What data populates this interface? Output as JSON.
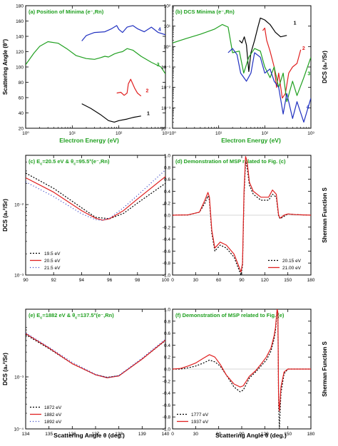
{
  "figure": {
    "xlabel_top": "Electron Energy (eV)",
    "xlabel_bottom": "Scattering Angle θ (deg.)"
  },
  "chart_data": [
    {
      "id": "a",
      "type": "line",
      "title": "(a) Position of Minima (e⁻,Rn)",
      "xlabel": "Electron Energy (eV)",
      "ylabel": "Scattering Angle (θ°)",
      "xscale": "log",
      "xlim": [
        1,
        1000
      ],
      "ylim": [
        20,
        180
      ],
      "xticks": [
        1,
        10,
        100,
        1000
      ],
      "xticklabels": [
        "10⁰",
        "10¹",
        "10²",
        "10³"
      ],
      "yticks": [
        20,
        40,
        60,
        80,
        100,
        120,
        140,
        160,
        180
      ],
      "yticklabels": [
        "20",
        "40",
        "60",
        "80",
        "100",
        "120",
        "140",
        "160",
        "180"
      ],
      "series": [
        {
          "name": "1",
          "color": "#000000",
          "x": [
            16,
            25,
            40,
            60,
            80,
            100,
            150,
            200,
            300
          ],
          "y": [
            52,
            46,
            38,
            30,
            28,
            30,
            32,
            34,
            36
          ]
        },
        {
          "name": "2",
          "color": "#e02020",
          "x": [
            90,
            110,
            130,
            150,
            160,
            180,
            220,
            250,
            300
          ],
          "y": [
            66,
            67,
            63,
            66,
            78,
            84,
            72,
            66,
            62
          ]
        },
        {
          "name": "3",
          "color": "#20a020",
          "x": [
            1,
            1.5,
            2,
            3,
            5,
            8,
            12,
            20,
            30,
            40,
            50,
            60,
            80,
            100,
            120,
            150,
            200,
            300,
            500,
            800,
            1000
          ],
          "y": [
            103,
            118,
            127,
            133,
            131,
            123,
            115,
            111,
            110,
            112,
            114,
            113,
            117,
            119,
            120,
            124,
            122,
            114,
            106,
            100,
            91
          ]
        },
        {
          "name": "4",
          "color": "#2030c0",
          "x": [
            16,
            20,
            30,
            50,
            70,
            90,
            100,
            120,
            150,
            200,
            250,
            350,
            500,
            700,
            1000
          ],
          "y": [
            134,
            141,
            145,
            146,
            150,
            154,
            149,
            145,
            152,
            154,
            150,
            146,
            152,
            145,
            142
          ]
        }
      ],
      "curve_labels": [
        {
          "text": "1",
          "x": 400,
          "y": 37,
          "color": "#000000"
        },
        {
          "text": "2",
          "x": 380,
          "y": 67,
          "color": "#e02020"
        },
        {
          "text": "3",
          "x": 650,
          "y": 101,
          "color": "#20a020"
        },
        {
          "text": "4",
          "x": 700,
          "y": 147,
          "color": "#2030c0"
        }
      ]
    },
    {
      "id": "b",
      "type": "line",
      "title": "(b) DCS  Minima (e⁻,Rn)",
      "xlabel": "Electron Energy (eV)",
      "ylabel": "DCS (a₀²/Sr)",
      "ylabel_side": "right",
      "xscale": "log",
      "yscale": "log",
      "xlim": [
        1,
        1000
      ],
      "ylim": [
        0.0001,
        100
      ],
      "xticks": [
        1,
        10,
        100,
        1000
      ],
      "xticklabels": [
        "10⁰",
        "10¹",
        "10²",
        "10³"
      ],
      "yticks": [
        0.0001,
        0.001,
        0.01,
        0.1,
        1,
        10,
        100
      ],
      "yticklabels": [
        "10⁻⁴",
        "10⁻³",
        "10⁻²",
        "10⁻¹",
        "10⁰",
        "10¹",
        "10²"
      ],
      "series": [
        {
          "name": "1",
          "color": "#000000",
          "x": [
            28,
            32,
            36,
            40,
            45,
            50,
            60,
            70,
            80,
            100,
            130,
            170,
            220,
            300
          ],
          "y": [
            2,
            1.5,
            3,
            1.2,
            0.06,
            0.5,
            2,
            8,
            25,
            20,
            12,
            5,
            3,
            3.5
          ]
        },
        {
          "name": "2",
          "color": "#e02020",
          "x": [
            90,
            100,
            110,
            130,
            160,
            180,
            200,
            240,
            280,
            330,
            400,
            500,
            600
          ],
          "y": [
            6,
            8,
            2,
            0.6,
            0.1,
            0.01,
            0.05,
            0.003,
            0.005,
            0.05,
            0.1,
            0.15,
            0.7
          ]
        },
        {
          "name": "3",
          "color": "#20a020",
          "x": [
            1,
            2,
            4,
            8,
            12,
            16,
            20,
            28,
            35,
            45,
            60,
            80,
            100,
            130,
            160,
            200,
            250,
            300,
            400,
            500,
            700,
            1000
          ],
          "y": [
            1.5,
            2.5,
            4,
            7,
            12,
            9,
            0.5,
            0.6,
            0.05,
            0.3,
            0.8,
            0.6,
            0.1,
            0.03,
            0.1,
            0.01,
            0.05,
            0.002,
            0.02,
            0.004,
            0.03,
            0.3
          ]
        },
        {
          "name": "4",
          "color": "#2030c0",
          "x": [
            16,
            20,
            25,
            30,
            40,
            50,
            60,
            80,
            100,
            130,
            160,
            200,
            250,
            300,
            400,
            500,
            700,
            1000
          ],
          "y": [
            0.5,
            0.8,
            0.4,
            0.05,
            0.02,
            0.05,
            0.5,
            0.3,
            0.05,
            0.08,
            0.02,
            0.01,
            0.0005,
            0.005,
            0.0003,
            0.002,
            0.0002,
            0.003
          ]
        }
      ],
      "curve_labels": [
        {
          "text": "1",
          "x": 420,
          "y": 12,
          "color": "#000000"
        },
        {
          "text": "2",
          "x": 650,
          "y": 0.7,
          "color": "#e02020"
        },
        {
          "text": "3",
          "x": 850,
          "y": 0.04,
          "color": "#20a020"
        },
        {
          "text": "4",
          "x": 800,
          "y": 0.0009,
          "color": "#2030c0"
        }
      ]
    },
    {
      "id": "c",
      "type": "line",
      "title": "(c) E",
      "title_sub_1": "c",
      "title_mid": "=20.5 eV & θ",
      "title_sub_2": "c",
      "title_end": "=95.5°(e⁻,Rn)",
      "xlabel": "",
      "ylabel": "DCS (a₀²/Sr)",
      "yscale": "log",
      "xlim": [
        90,
        100
      ],
      "ylim": [
        0.001,
        0.05
      ],
      "xticks": [
        90,
        92,
        94,
        96,
        98,
        100
      ],
      "xticklabels": [
        "90",
        "92",
        "94",
        "96",
        "98",
        "100"
      ],
      "yticks": [
        0.001,
        0.01
      ],
      "yticklabels": [
        "10⁻³",
        "10⁻²"
      ],
      "legend": "bottom-left",
      "series": [
        {
          "name": "19.5 eV",
          "color": "#000000",
          "dash": "2,2",
          "x": [
            90,
            92,
            94,
            95,
            96,
            97,
            98,
            100
          ],
          "y": [
            0.028,
            0.017,
            0.009,
            0.0066,
            0.0063,
            0.0075,
            0.0105,
            0.02
          ]
        },
        {
          "name": "20.5 eV",
          "color": "#e02020",
          "dash": "",
          "x": [
            90,
            92,
            94,
            95,
            95.5,
            96,
            97,
            98,
            100
          ],
          "y": [
            0.024,
            0.015,
            0.0082,
            0.0064,
            0.006,
            0.0063,
            0.0082,
            0.012,
            0.025
          ]
        },
        {
          "name": "21.5 eV",
          "color": "#2030c0",
          "dash": "1,3",
          "x": [
            90,
            92,
            94,
            95,
            95.5,
            96,
            97,
            98,
            100
          ],
          "y": [
            0.021,
            0.013,
            0.0074,
            0.0061,
            0.006,
            0.0064,
            0.009,
            0.0135,
            0.031
          ]
        }
      ]
    },
    {
      "id": "d",
      "type": "line",
      "title": "(d) Demonstration of MSP related to Fig. (c)",
      "xlabel": "",
      "ylabel": "Sherman Function S",
      "ylabel_side": "right",
      "xlim": [
        0,
        180
      ],
      "ylim": [
        -1,
        1
      ],
      "xticks": [
        0,
        30,
        60,
        90,
        120,
        150,
        180
      ],
      "xticklabels": [
        "0",
        "30",
        "60",
        "90",
        "120",
        "150",
        "180"
      ],
      "yticks": [
        -1,
        -0.8,
        -0.6,
        -0.4,
        -0.2,
        0,
        0.2,
        0.4,
        0.6,
        0.8,
        1
      ],
      "yticklabels": [
        "-1.0",
        "-0.8",
        "-0.6",
        "-0.4",
        "-0.2",
        "0.0",
        "0.2",
        "0.4",
        "0.6",
        "0.8",
        "1.0"
      ],
      "legend": "bottom-right",
      "series": [
        {
          "name": "20.15 eV",
          "color": "#000000",
          "dash": "2,2",
          "x": [
            0,
            20,
            35,
            42,
            46,
            48,
            51,
            55,
            62,
            70,
            80,
            86,
            89,
            91,
            93,
            95,
            97,
            100,
            105,
            115,
            125,
            130,
            135,
            138,
            140,
            145,
            150,
            160,
            170,
            180
          ],
          "y": [
            0,
            0.005,
            0.05,
            0.2,
            0.32,
            0.25,
            -0.3,
            -0.6,
            -0.5,
            -0.55,
            -0.7,
            -0.9,
            -1,
            -0.85,
            0.3,
            0.9,
            0.8,
            0.5,
            0.35,
            0.25,
            0.25,
            0.35,
            0.3,
            -0.02,
            -0.06,
            -0.02,
            0.02,
            0.01,
            0.005,
            0
          ]
        },
        {
          "name": "21.00 eV",
          "color": "#e02020",
          "dash": "",
          "x": [
            0,
            20,
            35,
            42,
            46,
            48,
            51,
            55,
            62,
            70,
            80,
            86,
            89,
            91,
            93,
            95,
            97,
            100,
            105,
            115,
            125,
            130,
            135,
            138,
            140,
            145,
            150,
            160,
            170,
            180
          ],
          "y": [
            0,
            0.005,
            0.05,
            0.25,
            0.38,
            0.3,
            -0.25,
            -0.55,
            -0.45,
            -0.5,
            -0.65,
            -0.85,
            -0.95,
            -0.8,
            0.4,
            0.98,
            0.9,
            0.55,
            0.4,
            0.3,
            0.3,
            0.42,
            0.35,
            0,
            -0.05,
            0,
            0.02,
            0.01,
            0.005,
            0
          ]
        }
      ]
    },
    {
      "id": "e",
      "type": "line",
      "title": "(e) E",
      "title_sub_1": "c",
      "title_mid": "=1882 eV & θ",
      "title_sub_2": "c",
      "title_end": "=137.5°(e⁻,Rn)",
      "xlabel": "Scattering Angle θ (deg.)",
      "ylabel": "DCS (a₀²/Sr)",
      "yscale": "log",
      "xlim": [
        134,
        140
      ],
      "ylim": [
        0.0001,
        0.02
      ],
      "xticks": [
        134,
        135,
        136,
        137,
        138,
        139,
        140
      ],
      "xticklabels": [
        "134",
        "135",
        "136",
        "137",
        "138",
        "139",
        "140"
      ],
      "yticks": [
        0.0001,
        0.001
      ],
      "yticklabels": [
        "10⁻⁴",
        "10⁻³"
      ],
      "legend": "bottom-left",
      "series": [
        {
          "name": "1872 eV",
          "color": "#000000",
          "dash": "2,2",
          "x": [
            134,
            135,
            136,
            137,
            137.5,
            138,
            139,
            140
          ],
          "y": [
            0.0065,
            0.0035,
            0.0018,
            0.0011,
            0.00098,
            0.00105,
            0.0022,
            0.005
          ]
        },
        {
          "name": "1882 eV",
          "color": "#e02020",
          "dash": "",
          "x": [
            134,
            135,
            136,
            137,
            137.5,
            138,
            139,
            140
          ],
          "y": [
            0.0068,
            0.0036,
            0.0018,
            0.0011,
            0.00096,
            0.00104,
            0.0022,
            0.0051
          ]
        },
        {
          "name": "1892 eV",
          "color": "#2030c0",
          "dash": "1,3",
          "x": [
            134,
            135,
            136,
            137,
            137.5,
            138,
            139,
            140
          ],
          "y": [
            0.007,
            0.0037,
            0.0019,
            0.00112,
            0.00097,
            0.00106,
            0.0023,
            0.0053
          ]
        }
      ]
    },
    {
      "id": "f",
      "type": "line",
      "title": "(f) Demonstration of MSP related to Fig. (e)",
      "xlabel": "Scattering Angle θ (deg.)",
      "ylabel": "Sherman Function S",
      "ylabel_side": "right",
      "xlim": [
        0,
        180
      ],
      "ylim": [
        -1,
        1
      ],
      "xticks": [
        0,
        30,
        60,
        90,
        120,
        150,
        180
      ],
      "xticklabels": [
        "0",
        "30",
        "60",
        "90",
        "120",
        "150",
        "180"
      ],
      "yticks": [
        -1,
        -0.8,
        -0.6,
        -0.4,
        -0.2,
        0,
        0.2,
        0.4,
        0.6,
        0.8,
        1
      ],
      "yticklabels": [
        "-1.0",
        "-0.8",
        "-0.6",
        "-0.4",
        "-0.2",
        "0.0",
        "0.2",
        "0.4",
        "0.6",
        "0.8",
        "1.0"
      ],
      "legend": "bottom-left",
      "series": [
        {
          "name": "1777 eV",
          "color": "#000000",
          "dash": "2,2",
          "x": [
            0,
            10,
            20,
            30,
            40,
            48,
            55,
            62,
            70,
            80,
            88,
            92,
            96,
            100,
            108,
            115,
            122,
            128,
            132,
            134,
            135,
            136,
            137,
            138,
            139,
            141,
            145,
            150,
            160,
            170,
            180
          ],
          "y": [
            0,
            0,
            0.02,
            0.05,
            0.1,
            0.15,
            0.12,
            0.05,
            -0.1,
            -0.3,
            -0.38,
            -0.35,
            -0.25,
            -0.15,
            -0.05,
            0.05,
            0.15,
            0.3,
            0.5,
            0.65,
            0.8,
            0.95,
            0.9,
            -0.6,
            -1,
            -0.4,
            -0.08,
            0,
            0,
            0,
            0
          ]
        },
        {
          "name": "1937 eV",
          "color": "#e02020",
          "dash": "",
          "x": [
            0,
            10,
            20,
            30,
            40,
            48,
            55,
            62,
            70,
            80,
            88,
            92,
            96,
            100,
            108,
            115,
            122,
            128,
            132,
            134,
            135,
            136,
            137,
            138,
            139,
            141,
            145,
            150,
            160,
            170,
            180
          ],
          "y": [
            0,
            0.01,
            0.05,
            0.1,
            0.18,
            0.24,
            0.2,
            0.08,
            -0.1,
            -0.25,
            -0.3,
            -0.28,
            -0.2,
            -0.12,
            -0.03,
            0.08,
            0.2,
            0.35,
            0.55,
            0.7,
            0.85,
            1,
            0.95,
            -0.5,
            -0.7,
            -0.3,
            -0.05,
            0,
            0,
            0,
            0
          ]
        }
      ]
    }
  ]
}
